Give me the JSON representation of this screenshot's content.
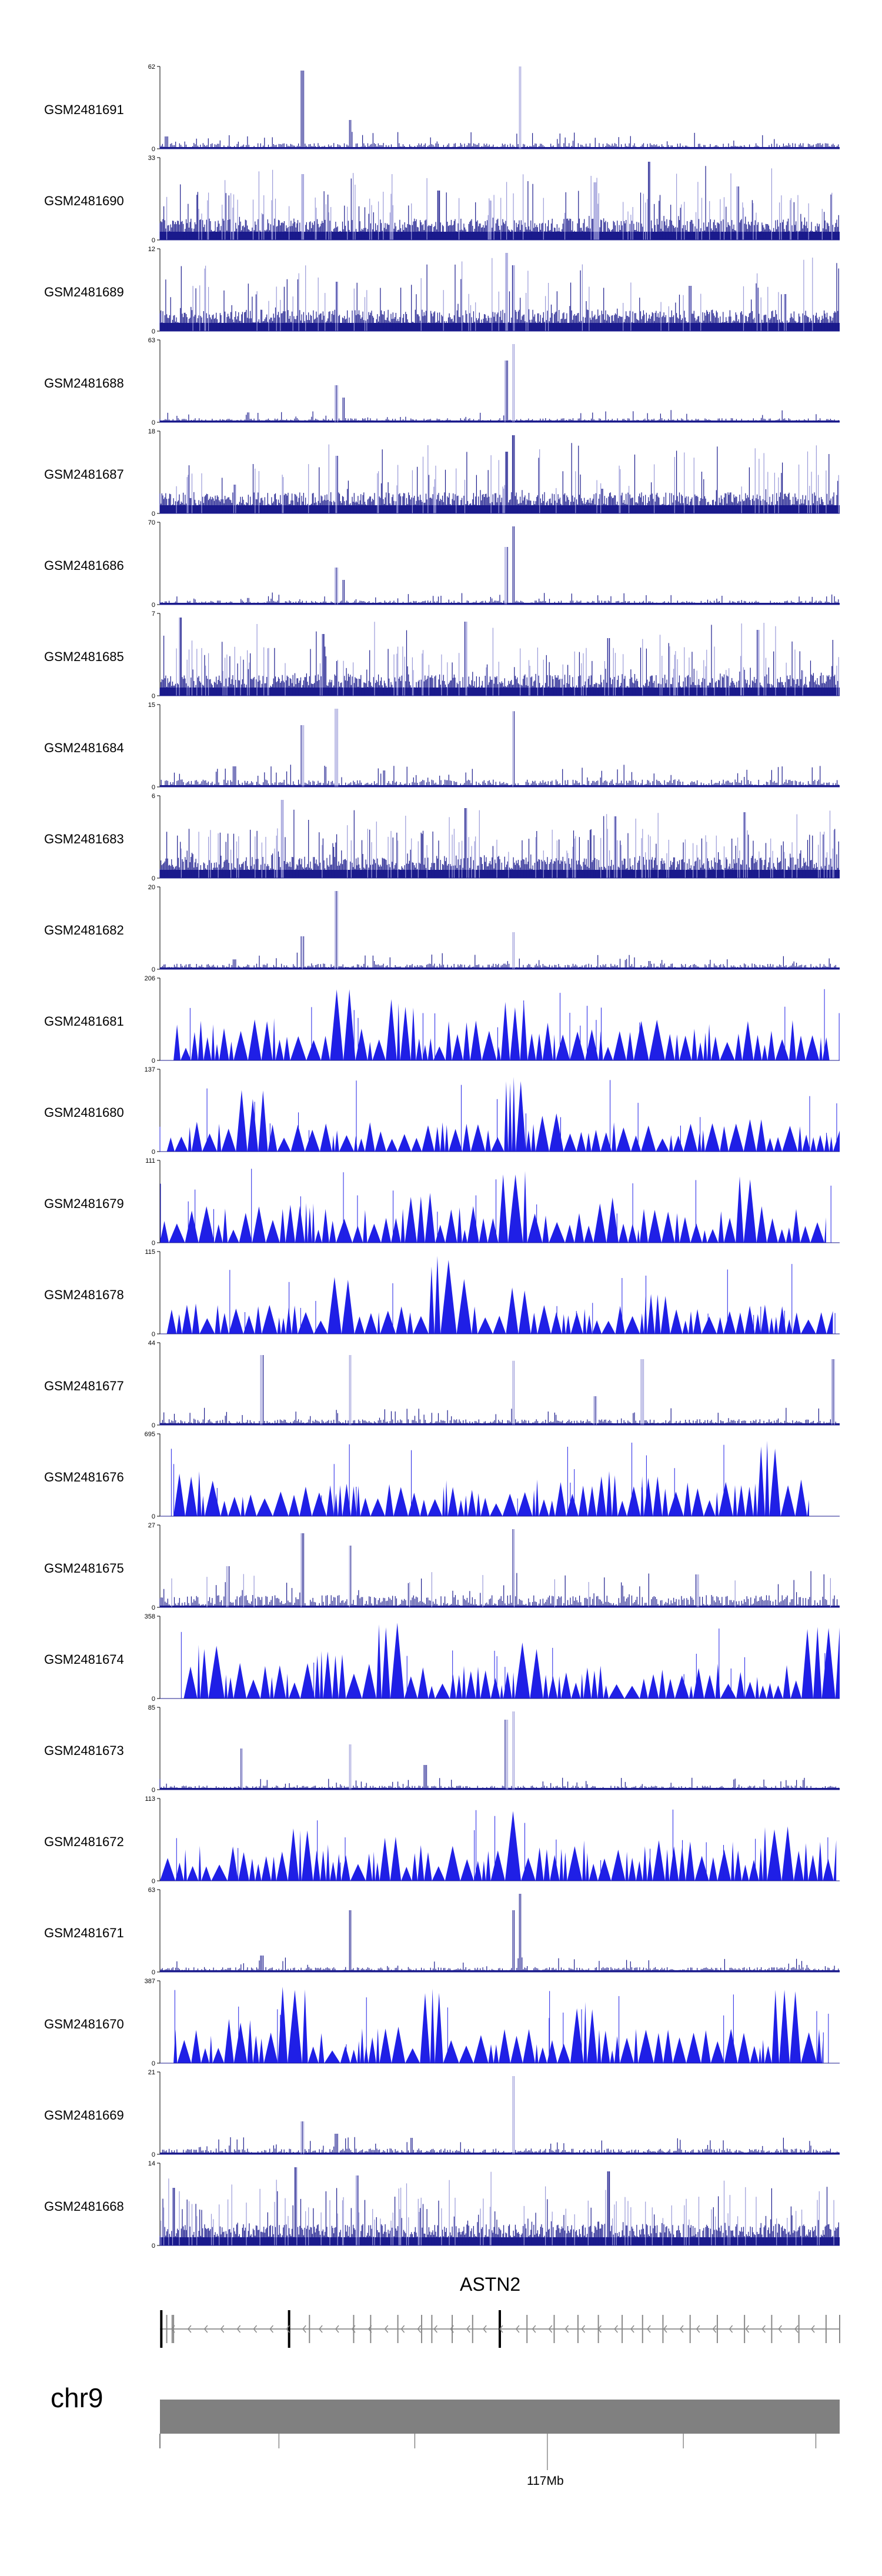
{
  "colors": {
    "bar": "#1a1a8c",
    "light_bar": "#9a9ad8",
    "triangle": "#1f1fe6",
    "chrom": "#808080"
  },
  "gene": {
    "name": "ASTN2",
    "strand": "-"
  },
  "chromosome": {
    "name": "chr9"
  },
  "axis": {
    "label": "117Mb"
  },
  "chart_data": {
    "type": "area",
    "title": "",
    "x_axis_label": "117Mb",
    "tracks": [
      {
        "name": "GSM2481691",
        "ymax": "62",
        "ymin": "0",
        "style": "bars",
        "peaks": [
          [
            0.21,
            0.95
          ],
          [
            0.28,
            0.35
          ],
          [
            0.53,
            1.0
          ],
          [
            0.01,
            0.15
          ]
        ],
        "noise": 0.07,
        "dense": false
      },
      {
        "name": "GSM2481690",
        "ymax": "33",
        "ymin": "0",
        "style": "dense",
        "peaks": [
          [
            0.72,
            0.95
          ],
          [
            0.21,
            0.8
          ],
          [
            0.64,
            0.7
          ],
          [
            0.41,
            0.6
          ],
          [
            0.85,
            0.65
          ]
        ],
        "noise": 0.3,
        "dense": true
      },
      {
        "name": "GSM2481689",
        "ymax": "12",
        "ymin": "0",
        "style": "dense",
        "peaks": [
          [
            0.51,
            0.95
          ],
          [
            0.52,
            0.8
          ],
          [
            0.26,
            0.6
          ],
          [
            0.78,
            0.55
          ],
          [
            0.92,
            0.45
          ]
        ],
        "noise": 0.18,
        "dense": true
      },
      {
        "name": "GSM2481688",
        "ymax": "63",
        "ymin": "0",
        "style": "bars",
        "peaks": [
          [
            0.26,
            0.45
          ],
          [
            0.27,
            0.3
          ],
          [
            0.51,
            0.75
          ],
          [
            0.52,
            0.95
          ],
          [
            0.13,
            0.12
          ]
        ],
        "noise": 0.05,
        "dense": false
      },
      {
        "name": "GSM2481687",
        "ymax": "18",
        "ymin": "0",
        "style": "dense",
        "peaks": [
          [
            0.26,
            0.7
          ],
          [
            0.51,
            0.75
          ],
          [
            0.52,
            0.95
          ],
          [
            0.11,
            0.35
          ],
          [
            0.65,
            0.3
          ]
        ],
        "noise": 0.14,
        "dense": true
      },
      {
        "name": "GSM2481686",
        "ymax": "70",
        "ymin": "0",
        "style": "bars",
        "peaks": [
          [
            0.26,
            0.45
          ],
          [
            0.27,
            0.3
          ],
          [
            0.51,
            0.7
          ],
          [
            0.52,
            0.95
          ],
          [
            0.13,
            0.08
          ]
        ],
        "noise": 0.05,
        "dense": false
      },
      {
        "name": "GSM2481685",
        "ymax": "7",
        "ymin": "0",
        "style": "dense",
        "peaks": [
          [
            0.03,
            0.95
          ],
          [
            0.24,
            0.75
          ],
          [
            0.45,
            0.9
          ],
          [
            0.66,
            0.7
          ],
          [
            0.88,
            0.8
          ]
        ],
        "noise": 0.35,
        "dense": true
      },
      {
        "name": "GSM2481684",
        "ymax": "15",
        "ymin": "0",
        "style": "bars",
        "peaks": [
          [
            0.21,
            0.75
          ],
          [
            0.26,
            0.95
          ],
          [
            0.52,
            0.92
          ],
          [
            0.11,
            0.25
          ],
          [
            0.33,
            0.2
          ]
        ],
        "noise": 0.09,
        "dense": false
      },
      {
        "name": "GSM2481683",
        "ymax": "6",
        "ymin": "0",
        "style": "dense",
        "peaks": [
          [
            0.18,
            0.95
          ],
          [
            0.45,
            0.85
          ],
          [
            0.67,
            0.75
          ],
          [
            0.86,
            0.8
          ]
        ],
        "noise": 0.45,
        "dense": true
      },
      {
        "name": "GSM2481682",
        "ymax": "20",
        "ymin": "0",
        "style": "bars",
        "peaks": [
          [
            0.21,
            0.4
          ],
          [
            0.26,
            0.95
          ],
          [
            0.52,
            0.45
          ],
          [
            0.11,
            0.12
          ],
          [
            0.72,
            0.1
          ]
        ],
        "noise": 0.07,
        "dense": false
      },
      {
        "name": "GSM2481681",
        "ymax": "206",
        "ymin": "0",
        "style": "triangles",
        "peaks": [
          [
            0.27,
            0.95
          ],
          [
            0.36,
            0.75
          ],
          [
            0.52,
            0.75
          ],
          [
            0.15,
            0.55
          ],
          [
            0.63,
            0.4
          ]
        ],
        "noise": 0.35,
        "dense": false,
        "coverage": [
          0.02,
          0.985
        ]
      },
      {
        "name": "GSM2481680",
        "ymax": "137",
        "ymin": "0",
        "style": "triangles",
        "peaks": [
          [
            0.52,
            0.95
          ],
          [
            0.14,
            0.75
          ],
          [
            0.57,
            0.5
          ],
          [
            0.87,
            0.4
          ]
        ],
        "noise": 0.22,
        "dense": false,
        "coverage": [
          0.01,
          1.0
        ]
      },
      {
        "name": "GSM2481679",
        "ymax": "111",
        "ymin": "0",
        "style": "triangles",
        "peaks": [
          [
            0.86,
            0.9
          ],
          [
            0.38,
            0.65
          ],
          [
            0.52,
            0.88
          ],
          [
            0.66,
            0.55
          ],
          [
            0.21,
            0.5
          ]
        ],
        "noise": 0.3,
        "dense": false,
        "coverage": [
          0.0,
          0.98
        ]
      },
      {
        "name": "GSM2481678",
        "ymax": "115",
        "ymin": "0",
        "style": "triangles",
        "peaks": [
          [
            0.41,
            0.95
          ],
          [
            0.43,
            0.75
          ],
          [
            0.26,
            0.7
          ],
          [
            0.52,
            0.58
          ],
          [
            0.73,
            0.5
          ]
        ],
        "noise": 0.22,
        "dense": false,
        "coverage": [
          0.01,
          0.99
        ]
      },
      {
        "name": "GSM2481677",
        "ymax": "44",
        "ymin": "0",
        "style": "bars",
        "peaks": [
          [
            0.15,
            0.85
          ],
          [
            0.28,
            0.85
          ],
          [
            0.52,
            0.78
          ],
          [
            0.71,
            0.8
          ],
          [
            0.99,
            0.8
          ],
          [
            0.64,
            0.35
          ]
        ],
        "noise": 0.07,
        "dense": false
      },
      {
        "name": "GSM2481676",
        "ymax": "695",
        "ymin": "0",
        "style": "triangles",
        "peaks": [
          [
            0.04,
            0.55
          ],
          [
            0.28,
            0.4
          ],
          [
            0.66,
            0.55
          ],
          [
            0.72,
            0.5
          ],
          [
            0.9,
            0.95
          ]
        ],
        "noise": 0.3,
        "dense": false,
        "coverage": [
          0.02,
          0.955
        ]
      },
      {
        "name": "GSM2481675",
        "ymax": "27",
        "ymin": "0",
        "style": "bars",
        "peaks": [
          [
            0.21,
            0.9
          ],
          [
            0.28,
            0.75
          ],
          [
            0.52,
            0.95
          ],
          [
            0.1,
            0.5
          ],
          [
            0.79,
            0.4
          ]
        ],
        "noise": 0.15,
        "dense": false
      },
      {
        "name": "GSM2481674",
        "ymax": "358",
        "ymin": "0",
        "style": "triangles",
        "peaks": [
          [
            0.07,
            0.7
          ],
          [
            0.33,
            0.95
          ],
          [
            0.25,
            0.6
          ],
          [
            0.54,
            0.7
          ],
          [
            0.96,
            0.95
          ],
          [
            1.0,
            0.95
          ]
        ],
        "noise": 0.3,
        "dense": false,
        "coverage": [
          0.035,
          1.0
        ]
      },
      {
        "name": "GSM2481673",
        "ymax": "85",
        "ymin": "0",
        "style": "bars",
        "peaks": [
          [
            0.12,
            0.5
          ],
          [
            0.28,
            0.55
          ],
          [
            0.51,
            0.85
          ],
          [
            0.52,
            0.95
          ],
          [
            0.39,
            0.3
          ]
        ],
        "noise": 0.05,
        "dense": false
      },
      {
        "name": "GSM2481672",
        "ymax": "113",
        "ymin": "0",
        "style": "triangles",
        "peaks": [
          [
            0.21,
            0.7
          ],
          [
            0.52,
            0.95
          ],
          [
            0.34,
            0.55
          ],
          [
            0.91,
            0.7
          ],
          [
            0.76,
            0.45
          ]
        ],
        "noise": 0.35,
        "dense": false,
        "coverage": [
          0.0,
          0.995
        ]
      },
      {
        "name": "GSM2481671",
        "ymax": "63",
        "ymin": "0",
        "style": "bars",
        "peaks": [
          [
            0.28,
            0.75
          ],
          [
            0.52,
            0.75
          ],
          [
            0.53,
            0.95
          ],
          [
            0.15,
            0.2
          ]
        ],
        "noise": 0.06,
        "dense": false
      },
      {
        "name": "GSM2481670",
        "ymax": "387",
        "ymin": "0",
        "style": "triangles",
        "peaks": [
          [
            0.2,
            0.95
          ],
          [
            0.4,
            0.95
          ],
          [
            0.62,
            0.75
          ],
          [
            0.92,
            0.95
          ],
          [
            0.12,
            0.55
          ],
          [
            0.34,
            0.45
          ]
        ],
        "noise": 0.28,
        "dense": false,
        "coverage": [
          0.02,
          0.975
        ]
      },
      {
        "name": "GSM2481669",
        "ymax": "21",
        "ymin": "0",
        "style": "bars",
        "peaks": [
          [
            0.52,
            0.95
          ],
          [
            0.21,
            0.4
          ],
          [
            0.26,
            0.25
          ],
          [
            0.37,
            0.2
          ]
        ],
        "noise": 0.07,
        "dense": false
      },
      {
        "name": "GSM2481668",
        "ymax": "14",
        "ymin": "0",
        "style": "dense",
        "peaks": [
          [
            0.2,
            0.95
          ],
          [
            0.29,
            0.85
          ],
          [
            0.66,
            0.9
          ],
          [
            0.02,
            0.7
          ]
        ],
        "noise": 0.3,
        "dense": true
      }
    ]
  }
}
